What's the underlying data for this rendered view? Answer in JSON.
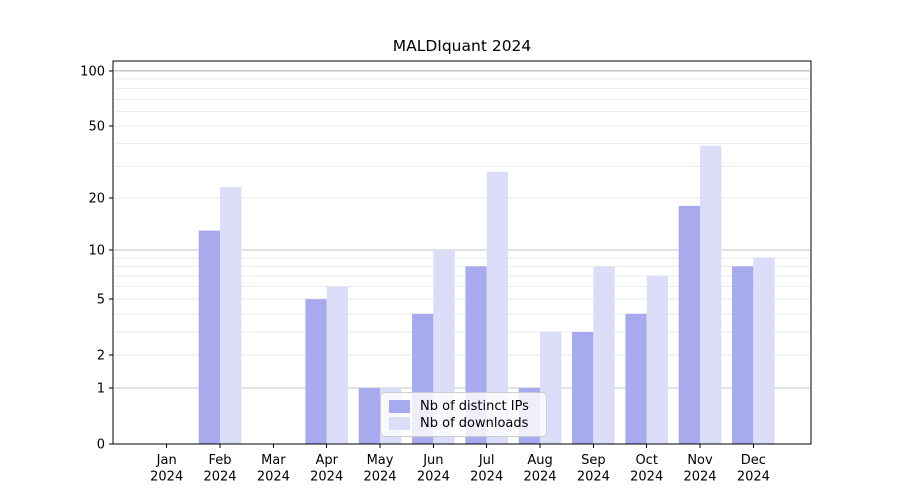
{
  "chart_data": {
    "type": "bar",
    "title": "MALDIquant 2024",
    "categories": [
      {
        "month": "Jan",
        "year": "2024"
      },
      {
        "month": "Feb",
        "year": "2024"
      },
      {
        "month": "Mar",
        "year": "2024"
      },
      {
        "month": "Apr",
        "year": "2024"
      },
      {
        "month": "May",
        "year": "2024"
      },
      {
        "month": "Jun",
        "year": "2024"
      },
      {
        "month": "Jul",
        "year": "2024"
      },
      {
        "month": "Aug",
        "year": "2024"
      },
      {
        "month": "Sep",
        "year": "2024"
      },
      {
        "month": "Oct",
        "year": "2024"
      },
      {
        "month": "Nov",
        "year": "2024"
      },
      {
        "month": "Dec",
        "year": "2024"
      }
    ],
    "series": [
      {
        "name": "Nb of distinct IPs",
        "color": "#a8aaf0",
        "values": [
          0,
          13,
          0,
          5,
          1,
          4,
          8,
          1,
          3,
          4,
          18,
          8
        ]
      },
      {
        "name": "Nb of downloads",
        "color": "#dcdef9",
        "values": [
          0,
          23,
          0,
          6,
          1,
          10,
          28,
          3,
          8,
          7,
          39,
          9
        ]
      }
    ],
    "xlabel": "",
    "ylabel": "",
    "yscale": "log1p",
    "yticks": [
      0,
      1,
      2,
      5,
      10,
      20,
      50,
      100
    ],
    "ylim": [
      0,
      113
    ],
    "grid": {
      "major_lines": [
        1,
        10,
        100
      ],
      "minor_lines": [
        2,
        3,
        4,
        5,
        6,
        7,
        8,
        9,
        20,
        30,
        40,
        50,
        60,
        70,
        80,
        90
      ],
      "major_color": "#c6c6c6",
      "minor_color": "#eaeaea"
    },
    "legend": {
      "position": "lower center"
    },
    "axis_color": "#000000",
    "background_color": "#ffffff"
  }
}
